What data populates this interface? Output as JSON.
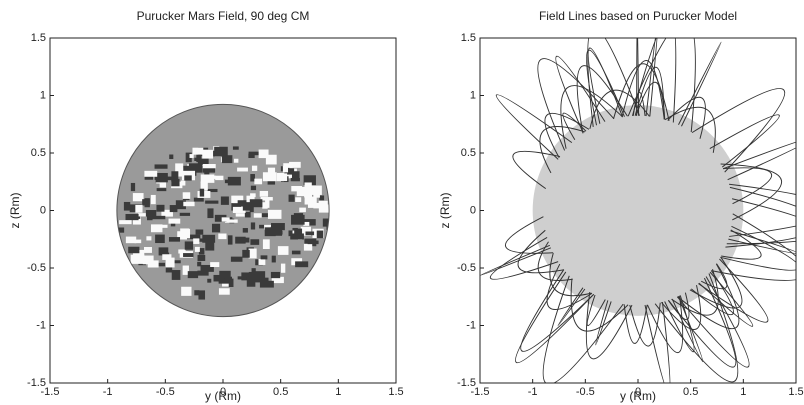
{
  "chart_data": [
    {
      "type": "image",
      "title": "Purucker Mars Field, 90 deg CM",
      "x_label": "y (Rm)",
      "y_label": "z (Rm)",
      "xlim": [
        -1.5,
        1.5
      ],
      "ylim": [
        -1.5,
        1.5
      ],
      "xticks": [
        -1.5,
        -1,
        -0.5,
        0,
        0.5,
        1,
        1.5
      ],
      "yticks": [
        -1.5,
        -1,
        -0.5,
        0,
        0.5,
        1,
        1.5
      ]
    },
    {
      "type": "field-lines",
      "title": "Field Lines based on Purucker Model",
      "x_label": "y (Rm)",
      "y_label": "z (Rm)",
      "xlim": [
        -1.5,
        1.5
      ],
      "ylim": [
        -1.5,
        1.5
      ],
      "xticks": [
        -1.5,
        -1,
        -0.5,
        0,
        0.5,
        1,
        1.5
      ],
      "yticks": [
        -1.5,
        -1,
        -0.5,
        0,
        0.5,
        1,
        1.5
      ]
    }
  ]
}
